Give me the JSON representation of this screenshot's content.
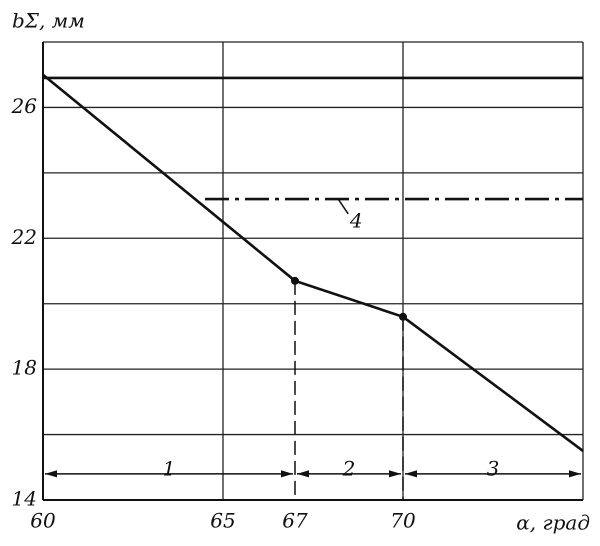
{
  "chart_data": {
    "type": "line",
    "ylabel": "bΣ, мм",
    "xlabel": "α, град",
    "xlim": [
      60,
      75
    ],
    "ylim": [
      14,
      28
    ],
    "xticks": [
      60,
      65,
      67,
      70
    ],
    "yticks": [
      14,
      18,
      22,
      26
    ],
    "xgrid": [
      65,
      70,
      75
    ],
    "ygrid": [
      16,
      18,
      20,
      22,
      24,
      26,
      28
    ],
    "series": [
      {
        "color": "#111",
        "style": "solid",
        "x": [
          60,
          67,
          70,
          75
        ],
        "values": [
          27,
          20.7,
          19.6,
          15.5
        ]
      },
      {
        "color": "#111",
        "style": "solid",
        "x": [
          60,
          75
        ],
        "values": [
          26.9,
          26.9
        ]
      },
      {
        "color": "#111",
        "style": "dash-dot",
        "x": [
          64.5,
          75
        ],
        "values": [
          23.2,
          23.2
        ]
      }
    ],
    "annotations": [
      {
        "text": "4",
        "x": 68.7,
        "y": 22.5,
        "target": [
          68.2,
          23.2
        ]
      }
    ],
    "regions": [
      {
        "label": "1",
        "from": 60,
        "to": 67,
        "y": 14.8
      },
      {
        "label": "2",
        "from": 67,
        "to": 70,
        "y": 14.8
      },
      {
        "label": "3",
        "from": 70,
        "to": 75,
        "y": 14.8
      }
    ]
  }
}
